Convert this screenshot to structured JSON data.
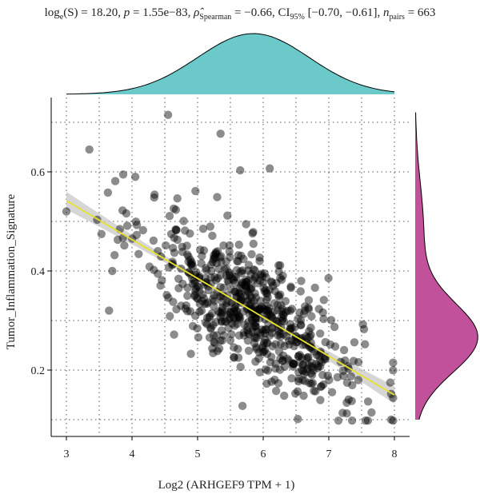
{
  "chart_data": {
    "type": "scatter",
    "subtitle": {
      "log_label": "log",
      "log_sub": "e",
      "log_arg": "(S) = 18.20, ",
      "p_sym": "p",
      "p_text": " = 1.55e−83, ",
      "rho_sym": "ρ̂",
      "rho_sub": "Spearman",
      "rho_text": " = −0.66, CI",
      "ci_sub": "95%",
      "ci_text": " [−0.70, −0.61], ",
      "n_sym": "n",
      "n_sub": "pairs",
      "n_text": " = 663"
    },
    "xlabel": "Log2 (ARHGEF9 TPM + 1)",
    "ylabel": "Tumor_Inflammation_Signature",
    "xlim": [
      2.75,
      8.25
    ],
    "ylim": [
      0.085,
      0.77
    ],
    "x_ticks": [
      3,
      4,
      5,
      6,
      7,
      8
    ],
    "x_tick_labels": [
      "3",
      "4",
      "5",
      "6",
      "7",
      "8"
    ],
    "y_ticks": [
      0.2,
      0.4,
      0.6
    ],
    "y_tick_labels": [
      "0.2",
      "0.4",
      "0.6"
    ],
    "grid_x": [
      3,
      3.5,
      4,
      4.5,
      5,
      5.5,
      6,
      6.5,
      7,
      7.5,
      8
    ],
    "grid_y": [
      0.1,
      0.2,
      0.3,
      0.4,
      0.5,
      0.6,
      0.7
    ],
    "n_points": 663,
    "fit": {
      "slope": -0.0784,
      "intercept": 0.777,
      "x_range": [
        3,
        8
      ],
      "band_halfwidth_edge": 0.018,
      "band_halfwidth_center": 0.005
    },
    "highlight_points": [
      {
        "x": 3.0,
        "y": 0.52
      },
      {
        "x": 3.35,
        "y": 0.645
      },
      {
        "x": 4.55,
        "y": 0.715
      },
      {
        "x": 5.35,
        "y": 0.677
      },
      {
        "x": 6.1,
        "y": 0.607
      },
      {
        "x": 5.65,
        "y": 0.603
      },
      {
        "x": 4.05,
        "y": 0.59
      },
      {
        "x": 3.7,
        "y": 0.4
      },
      {
        "x": 3.65,
        "y": 0.32
      },
      {
        "x": 7.95,
        "y": 0.152
      },
      {
        "x": 7.95,
        "y": 0.1
      },
      {
        "x": 7.45,
        "y": 0.18
      }
    ],
    "density_x_color": "#6cc9c9",
    "density_y_color": "#c2519c",
    "point_color": "#000000",
    "fit_color": "#e8e22a",
    "band_color": "#c8c8c8"
  }
}
